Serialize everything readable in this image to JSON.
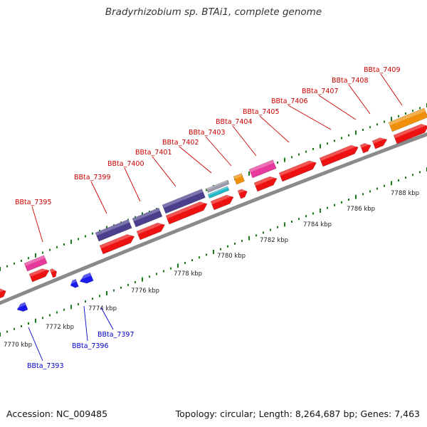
{
  "title": "Bradyrhizobium sp. BTAi1, complete genome",
  "footer": {
    "accession": "Accession: NC_009485",
    "summary": "Topology: circular; Length: 8,264,687 bp; Genes: 7,463"
  },
  "colors": {
    "label_red": "#cc0000",
    "label_blue": "#0000cc",
    "tick_green": "#1a7a1a",
    "backbone_gray": "#8a8a8a",
    "gene_red": "#ee1111",
    "gene_purple": "#4a3f8c",
    "gene_pink": "#e6399b",
    "gene_orange": "#f0900a",
    "gene_blue": "#1a1aee",
    "gene_cyan": "#22b8c8",
    "gene_silver": "#9a9aaa"
  },
  "scale": {
    "kbp_labels": [
      "7770 kbp",
      "7772 kbp",
      "7774 kbp",
      "7776 kbp",
      "7778 kbp",
      "7780 kbp",
      "7782 kbp",
      "7784 kbp",
      "7786 kbp",
      "7788 kbp"
    ]
  },
  "gene_labels_top": [
    "BBta_7395",
    "BBta_7399",
    "BBta_7400",
    "BBta_7401",
    "BBta_7402",
    "BBta_7403",
    "BBta_7404",
    "BBta_7405",
    "BBta_7406",
    "BBta_7407",
    "BBta_7408",
    "BBta_7409"
  ],
  "gene_labels_bottom": [
    "BBta_7397",
    "BBta_7396",
    "BBta_7393"
  ]
}
